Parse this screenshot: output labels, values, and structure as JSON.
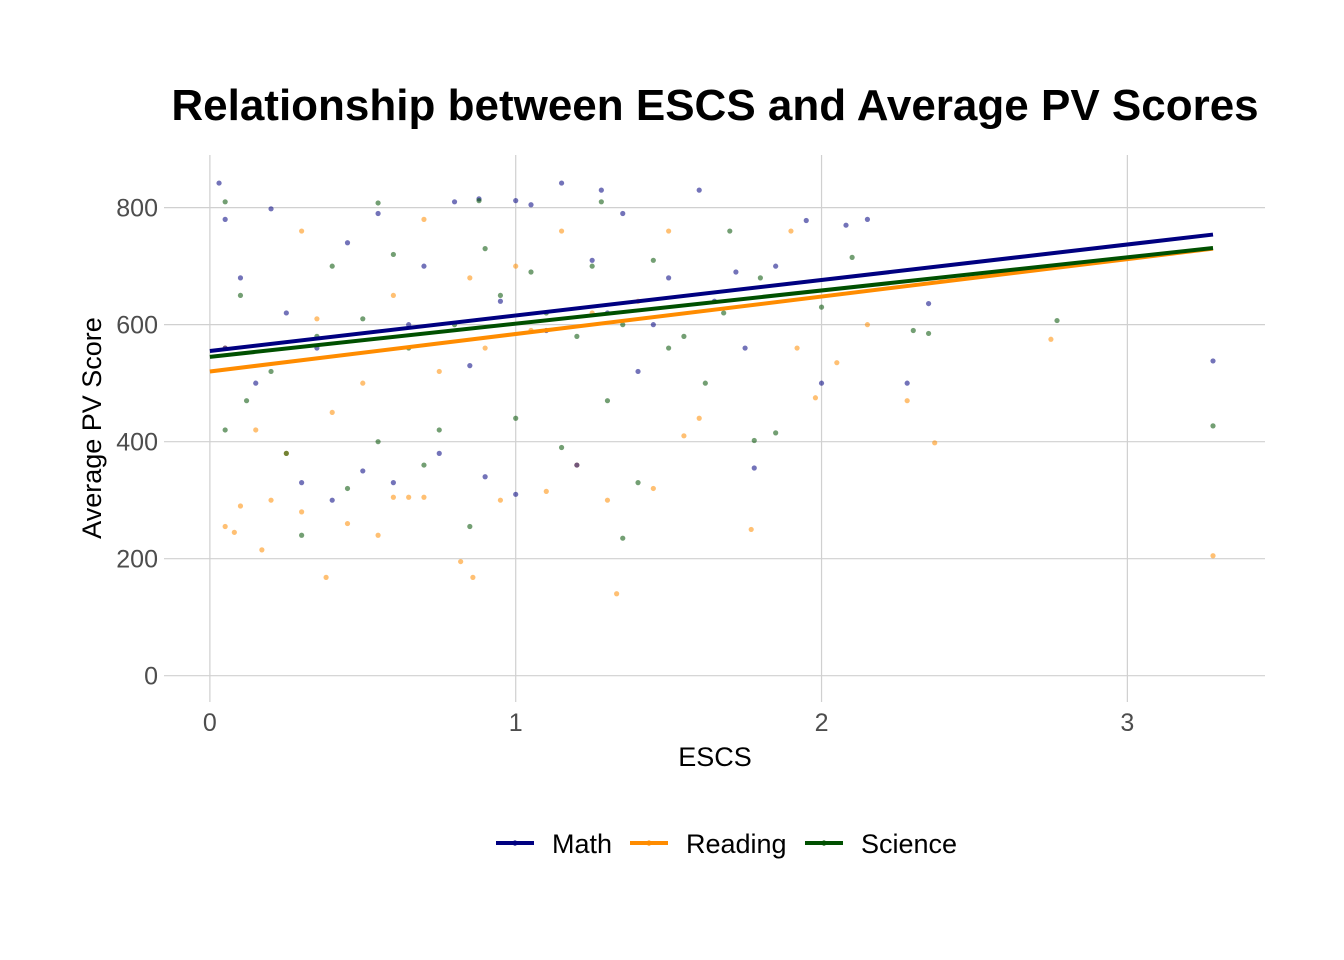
{
  "chart_data": {
    "type": "scatter",
    "title": "Relationship between ESCS and Average PV Scores",
    "xlabel": "ESCS",
    "ylabel": "Average PV Score",
    "xlim": [
      -0.15,
      3.45
    ],
    "ylim": [
      -45,
      890
    ],
    "x_ticks": [
      0,
      1,
      2,
      3
    ],
    "y_ticks": [
      0,
      200,
      400,
      600,
      800
    ],
    "grid": true,
    "legend_position": "bottom",
    "point_opacity": 0.55,
    "series": [
      {
        "name": "Math",
        "color": "#000080",
        "trend": {
          "x": [
            0,
            3.28
          ],
          "y": [
            555,
            754
          ]
        },
        "points": [
          [
            0.03,
            842
          ],
          [
            0.05,
            780
          ],
          [
            0.2,
            798
          ],
          [
            0.45,
            740
          ],
          [
            0.55,
            790
          ],
          [
            0.8,
            810
          ],
          [
            0.88,
            815
          ],
          [
            1.0,
            812
          ],
          [
            1.05,
            805
          ],
          [
            1.15,
            842
          ],
          [
            1.28,
            830
          ],
          [
            1.35,
            790
          ],
          [
            1.6,
            830
          ],
          [
            1.95,
            778
          ],
          [
            2.08,
            770
          ],
          [
            2.15,
            780
          ],
          [
            1.72,
            690
          ],
          [
            1.85,
            700
          ],
          [
            2.35,
            636
          ],
          [
            1.78,
            355
          ],
          [
            1.75,
            560
          ],
          [
            2.0,
            500
          ],
          [
            2.28,
            500
          ],
          [
            3.28,
            538
          ],
          [
            0.3,
            330
          ],
          [
            0.4,
            300
          ],
          [
            0.5,
            350
          ],
          [
            0.6,
            330
          ],
          [
            0.75,
            380
          ],
          [
            0.9,
            340
          ],
          [
            1.0,
            310
          ],
          [
            1.2,
            360
          ],
          [
            0.15,
            500
          ],
          [
            0.25,
            620
          ],
          [
            0.35,
            560
          ],
          [
            0.65,
            600
          ],
          [
            0.95,
            640
          ],
          [
            1.1,
            590
          ],
          [
            1.3,
            620
          ],
          [
            1.45,
            600
          ],
          [
            0.1,
            680
          ],
          [
            0.7,
            700
          ],
          [
            1.25,
            710
          ],
          [
            1.5,
            680
          ],
          [
            0.05,
            560
          ],
          [
            0.85,
            530
          ],
          [
            1.4,
            520
          ],
          [
            1.65,
            640
          ]
        ]
      },
      {
        "name": "Reading",
        "color": "#FF8C00",
        "trend": {
          "x": [
            0,
            3.28
          ],
          "y": [
            520,
            730
          ]
        },
        "points": [
          [
            0.05,
            255
          ],
          [
            0.08,
            245
          ],
          [
            0.17,
            215
          ],
          [
            0.38,
            168
          ],
          [
            0.55,
            240
          ],
          [
            0.82,
            195
          ],
          [
            0.86,
            168
          ],
          [
            1.33,
            140
          ],
          [
            1.77,
            250
          ],
          [
            3.28,
            205
          ],
          [
            2.37,
            398
          ],
          [
            2.75,
            575
          ],
          [
            2.28,
            470
          ],
          [
            2.05,
            535
          ],
          [
            2.15,
            600
          ],
          [
            1.9,
            760
          ],
          [
            0.6,
            305
          ],
          [
            0.65,
            305
          ],
          [
            0.7,
            305
          ],
          [
            0.1,
            290
          ],
          [
            0.2,
            300
          ],
          [
            0.3,
            280
          ],
          [
            0.45,
            260
          ],
          [
            0.95,
            300
          ],
          [
            1.1,
            315
          ],
          [
            1.3,
            300
          ],
          [
            1.45,
            320
          ],
          [
            1.2,
            360
          ],
          [
            1.55,
            410
          ],
          [
            1.6,
            440
          ],
          [
            1.92,
            560
          ],
          [
            1.98,
            475
          ],
          [
            0.15,
            420
          ],
          [
            0.25,
            380
          ],
          [
            0.4,
            450
          ],
          [
            0.5,
            500
          ],
          [
            0.75,
            520
          ],
          [
            0.9,
            560
          ],
          [
            1.05,
            590
          ],
          [
            1.25,
            620
          ],
          [
            1.4,
            640
          ],
          [
            0.05,
            560
          ],
          [
            0.35,
            610
          ],
          [
            0.6,
            650
          ],
          [
            0.85,
            680
          ],
          [
            1.0,
            700
          ],
          [
            0.7,
            780
          ],
          [
            0.3,
            760
          ],
          [
            1.15,
            760
          ],
          [
            1.5,
            760
          ]
        ]
      },
      {
        "name": "Science",
        "color": "#005000",
        "trend": {
          "x": [
            0,
            3.28
          ],
          "y": [
            545,
            731
          ]
        },
        "points": [
          [
            0.05,
            810
          ],
          [
            0.55,
            808
          ],
          [
            0.88,
            812
          ],
          [
            1.28,
            810
          ],
          [
            1.7,
            760
          ],
          [
            2.1,
            715
          ],
          [
            2.3,
            590
          ],
          [
            2.77,
            607
          ],
          [
            3.28,
            427
          ],
          [
            1.78,
            402
          ],
          [
            1.35,
            235
          ],
          [
            0.3,
            240
          ],
          [
            0.45,
            320
          ],
          [
            0.85,
            255
          ],
          [
            2.35,
            585
          ],
          [
            2.0,
            630
          ],
          [
            1.85,
            415
          ],
          [
            0.12,
            470
          ],
          [
            0.2,
            520
          ],
          [
            0.35,
            580
          ],
          [
            0.5,
            610
          ],
          [
            0.65,
            560
          ],
          [
            0.8,
            600
          ],
          [
            0.95,
            650
          ],
          [
            1.1,
            620
          ],
          [
            1.2,
            580
          ],
          [
            1.35,
            600
          ],
          [
            1.5,
            560
          ],
          [
            1.62,
            500
          ],
          [
            0.1,
            650
          ],
          [
            0.4,
            700
          ],
          [
            0.6,
            720
          ],
          [
            0.9,
            730
          ],
          [
            1.05,
            690
          ],
          [
            1.25,
            700
          ],
          [
            1.45,
            710
          ],
          [
            0.25,
            380
          ],
          [
            0.55,
            400
          ],
          [
            0.75,
            420
          ],
          [
            1.0,
            440
          ],
          [
            1.15,
            390
          ],
          [
            1.3,
            470
          ],
          [
            0.05,
            420
          ],
          [
            0.7,
            360
          ],
          [
            1.4,
            330
          ],
          [
            1.55,
            580
          ],
          [
            1.68,
            620
          ],
          [
            1.8,
            680
          ]
        ]
      }
    ]
  }
}
